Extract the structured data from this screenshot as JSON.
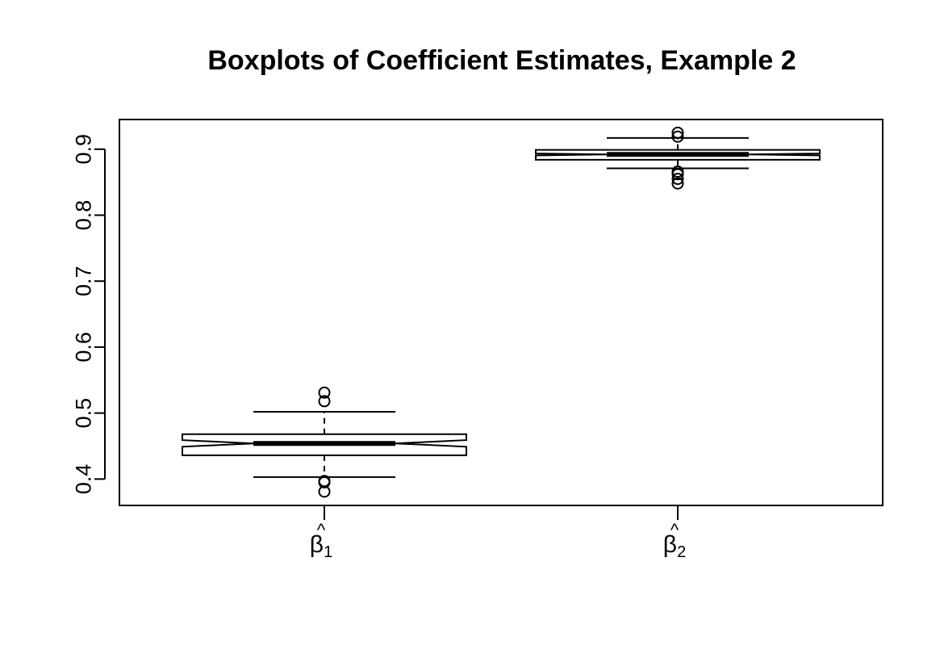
{
  "chart_data": {
    "type": "boxplot",
    "title": "Boxplots of Coefficient Estimates, Example 2",
    "xlabel": "",
    "ylabel": "",
    "ylim": [
      0.36,
      0.945
    ],
    "yticks": [
      "0.4",
      "0.5",
      "0.6",
      "0.7",
      "0.8",
      "0.9"
    ],
    "notched": true,
    "grid": false,
    "boxes": [
      {
        "label": "β̂₁",
        "symbol": "β",
        "subscript": "1",
        "whisker_low": 0.403,
        "q1": 0.436,
        "median": 0.454,
        "q3": 0.468,
        "whisker_high": 0.502,
        "notch_low": 0.449,
        "notch_high": 0.459,
        "outliers": [
          0.381,
          0.395,
          0.397,
          0.518,
          0.531
        ]
      },
      {
        "label": "β̂₂",
        "symbol": "β",
        "subscript": "2",
        "whisker_low": 0.871,
        "q1": 0.884,
        "median": 0.892,
        "q3": 0.899,
        "whisker_high": 0.917,
        "notch_low": 0.8905,
        "notch_high": 0.8935,
        "outliers": [
          0.848,
          0.855,
          0.862,
          0.866,
          0.919,
          0.925
        ]
      }
    ]
  }
}
